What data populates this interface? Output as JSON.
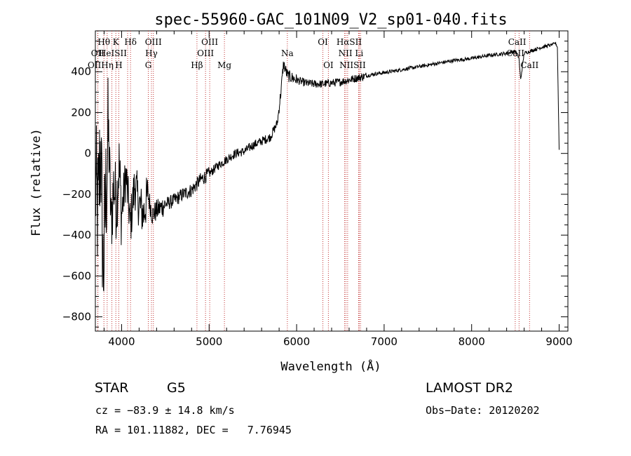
{
  "chart_data": {
    "type": "line",
    "title": "spec-55960-GAC_101N09_V2_sp01-040.fits",
    "xlabel": "Wavelength (Å)",
    "ylabel": "Flux (relative)",
    "xlim": [
      3700,
      9100
    ],
    "ylim": [
      -870,
      600
    ],
    "x_ticks": [
      4000,
      5000,
      6000,
      7000,
      8000,
      9000
    ],
    "y_ticks": [
      -800,
      -600,
      -400,
      -200,
      0,
      200,
      400
    ],
    "grid": false,
    "series": [
      {
        "x": [
          3700,
          3730,
          3760,
          3790,
          3820,
          3850,
          3880,
          3910,
          3940,
          3970,
          4000,
          4050,
          4100,
          4150,
          4200,
          4250,
          4300,
          4350,
          4400,
          4500,
          4600,
          4700,
          4800,
          4900,
          5000,
          5100,
          5200,
          5300,
          5400,
          5500,
          5600,
          5700,
          5780,
          5820,
          5850,
          5880,
          5900,
          5950,
          6000,
          6100,
          6200,
          6300,
          6400,
          6500,
          6600,
          6700,
          6800,
          6900,
          7000,
          7200,
          7400,
          7600,
          7800,
          8000,
          8200,
          8400,
          8500,
          8540,
          8560,
          8600,
          8700,
          8800,
          8900,
          8960,
          8980,
          9000
        ],
        "y": [
          -150,
          -300,
          50,
          -600,
          -200,
          100,
          -350,
          -150,
          -250,
          -50,
          -300,
          -100,
          -350,
          -150,
          -250,
          -300,
          -200,
          -300,
          -280,
          -250,
          -230,
          -200,
          -180,
          -130,
          -100,
          -60,
          -30,
          0,
          10,
          40,
          60,
          80,
          150,
          300,
          440,
          400,
          380,
          370,
          360,
          345,
          340,
          340,
          345,
          350,
          360,
          370,
          380,
          390,
          395,
          410,
          425,
          440,
          455,
          465,
          480,
          490,
          500,
          470,
          360,
          490,
          505,
          520,
          530,
          540,
          520,
          20
        ]
      }
    ],
    "annotations": {
      "lines": [
        {
          "name": "Hθ",
          "wavelength": 3798,
          "color": "#c03030"
        },
        {
          "name": "Hη",
          "wavelength": 3835,
          "color": "#c03030"
        },
        {
          "name": "OII",
          "wavelength": 3727,
          "color": "#c03030"
        },
        {
          "name": "OII",
          "wavelength": 3729,
          "color": "#c03030"
        },
        {
          "name": "K",
          "wavelength": 3934,
          "color": "#c03030"
        },
        {
          "name": "H",
          "wavelength": 3968,
          "color": "#c03030"
        },
        {
          "name": "HeI",
          "wavelength": 3889,
          "color": "#c03030"
        },
        {
          "name": "SII",
          "wavelength": 4069,
          "color": "#c03030"
        },
        {
          "name": "Hδ",
          "wavelength": 4102,
          "color": "#c03030"
        },
        {
          "name": "OIII",
          "wavelength": 4363,
          "color": "#c03030"
        },
        {
          "name": "Hγ",
          "wavelength": 4341,
          "color": "#c03030"
        },
        {
          "name": "G",
          "wavelength": 4305,
          "color": "#c03030"
        },
        {
          "name": "Hβ",
          "wavelength": 4861,
          "color": "#c03030"
        },
        {
          "name": "OIII",
          "wavelength": 4959,
          "color": "#c03030"
        },
        {
          "name": "OIII",
          "wavelength": 5007,
          "color": "#c03030"
        },
        {
          "name": "Mg",
          "wavelength": 5175,
          "color": "#c03030"
        },
        {
          "name": "Na",
          "wavelength": 5894,
          "color": "#c03030"
        },
        {
          "name": "OI",
          "wavelength": 6300,
          "color": "#c03030"
        },
        {
          "name": "OI",
          "wavelength": 6363,
          "color": "#c03030"
        },
        {
          "name": "Hα",
          "wavelength": 6563,
          "color": "#c03030"
        },
        {
          "name": "NII",
          "wavelength": 6548,
          "color": "#c03030"
        },
        {
          "name": "NII",
          "wavelength": 6583,
          "color": "#c03030"
        },
        {
          "name": "SII",
          "wavelength": 6716,
          "color": "#c03030"
        },
        {
          "name": "SII",
          "wavelength": 6731,
          "color": "#c03030"
        },
        {
          "name": "Li",
          "wavelength": 6708,
          "color": "#c03030"
        },
        {
          "name": "CaII",
          "wavelength": 8498,
          "color": "#c03030"
        },
        {
          "name": "CaII",
          "wavelength": 8542,
          "color": "#c03030"
        },
        {
          "name": "CaII",
          "wavelength": 8662,
          "color": "#c03030"
        }
      ],
      "labels": [
        {
          "text": "Hθ",
          "wavelength": 3798,
          "row": 1
        },
        {
          "text": "K",
          "wavelength": 3934,
          "row": 1
        },
        {
          "text": "Hδ",
          "wavelength": 4102,
          "row": 1
        },
        {
          "text": "OIII",
          "wavelength": 4363,
          "row": 1
        },
        {
          "text": "OIII",
          "wavelength": 5007,
          "row": 1
        },
        {
          "text": "OI",
          "wavelength": 6300,
          "row": 1
        },
        {
          "text": "HαSII",
          "wavelength": 6600,
          "row": 1
        },
        {
          "text": "CaII",
          "wavelength": 8520,
          "row": 1
        },
        {
          "text": "OII",
          "wavelength": 3727,
          "row": 2
        },
        {
          "text": "HeISII",
          "wavelength": 3900,
          "row": 2
        },
        {
          "text": "Hγ",
          "wavelength": 4341,
          "row": 2
        },
        {
          "text": "OIII",
          "wavelength": 4959,
          "row": 2
        },
        {
          "text": "Na",
          "wavelength": 5894,
          "row": 2
        },
        {
          "text": "NII Li",
          "wavelength": 6620,
          "row": 2
        },
        {
          "text": "CaII",
          "wavelength": 8500,
          "row": 2
        },
        {
          "text": "OIIHη",
          "wavelength": 3760,
          "row": 3
        },
        {
          "text": "H",
          "wavelength": 3968,
          "row": 3
        },
        {
          "text": "G",
          "wavelength": 4305,
          "row": 3
        },
        {
          "text": "Hβ",
          "wavelength": 4861,
          "row": 3
        },
        {
          "text": "Mg",
          "wavelength": 5175,
          "row": 3
        },
        {
          "text": "OI",
          "wavelength": 6363,
          "row": 3
        },
        {
          "text": "NIISII",
          "wavelength": 6640,
          "row": 3
        },
        {
          "text": "CaII",
          "wavelength": 8662,
          "row": 3
        }
      ]
    }
  },
  "info": {
    "object_class": "STAR",
    "subclass": "G5",
    "redshift": "cz = −83.9 ± 14.8 km/s",
    "coords": "RA = 101.11882, DEC =   7.76945",
    "survey": "LAMOST DR2",
    "obs_date": "Obs−Date: 20120202"
  }
}
